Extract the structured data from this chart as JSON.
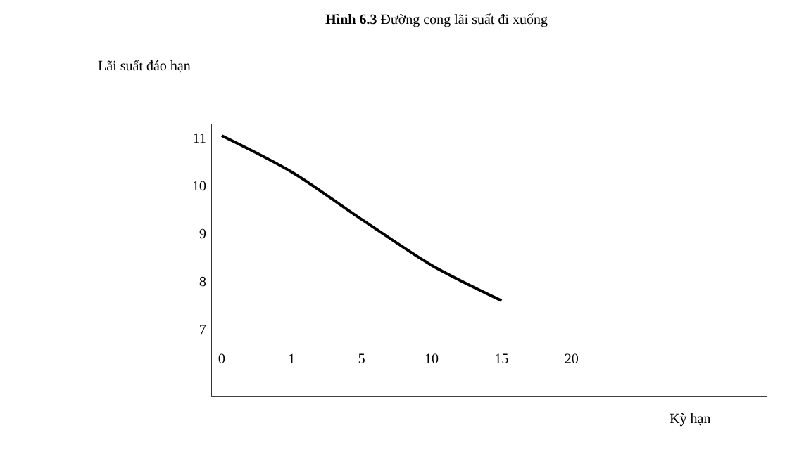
{
  "chart_data": {
    "type": "line",
    "title": "**Hình 6.3** Đường cong lãi suất đi xuống",
    "ylabel": "Lãi suất đáo hạn",
    "xlabel": "Kỳ hạn",
    "categories": [
      "0",
      "1",
      "5",
      "10",
      "15",
      "20"
    ],
    "ylim": [
      5.6,
      11.3
    ],
    "yticks": [
      7,
      8,
      9,
      10,
      11
    ],
    "marker": "none",
    "line_style": "solid",
    "series": [
      {
        "color": "#000000",
        "values": [
          11.05,
          10.29,
          9.3,
          8.34,
          7.6,
          null
        ]
      }
    ]
  }
}
